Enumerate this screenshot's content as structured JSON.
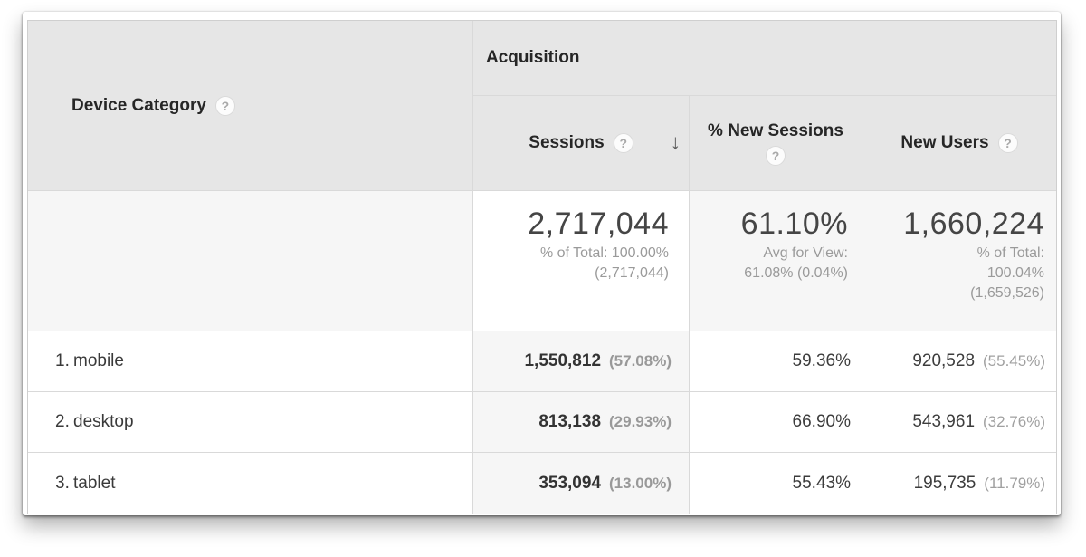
{
  "icons": {
    "help": "?",
    "sort_desc": "↓"
  },
  "colors": {
    "header_bg": "#e6e6e6",
    "highlight_bg": "#f6f6f6",
    "border": "#d9d9d9",
    "header_text": "#262626",
    "value_text": "#454545",
    "sub_text": "#9a9a9a"
  },
  "table": {
    "dimension_header": "Device Category",
    "group_header": "Acquisition",
    "columns": {
      "sessions": "Sessions",
      "new_sessions": "% New Sessions",
      "new_users": "New Users"
    },
    "sorted_column": "Sessions",
    "sort_direction": "descending",
    "summary": {
      "sessions": {
        "value": "2,717,044",
        "line1": "% of Total: 100.00%",
        "line2": "(2,717,044)"
      },
      "new_sessions": {
        "value": "61.10%",
        "line1": "Avg for View:",
        "line2": "61.08% (0.04%)"
      },
      "new_users": {
        "value": "1,660,224",
        "line1": "% of Total:",
        "line2": "100.04%",
        "line3": "(1,659,526)"
      }
    },
    "rows": [
      {
        "rank": "1.",
        "device": "mobile",
        "sessions": "1,550,812",
        "sessions_pct": "(57.08%)",
        "new_sessions": "59.36%",
        "new_users": "920,528",
        "new_users_pct": "(55.45%)"
      },
      {
        "rank": "2.",
        "device": "desktop",
        "sessions": "813,138",
        "sessions_pct": "(29.93%)",
        "new_sessions": "66.90%",
        "new_users": "543,961",
        "new_users_pct": "(32.76%)"
      },
      {
        "rank": "3.",
        "device": "tablet",
        "sessions": "353,094",
        "sessions_pct": "(13.00%)",
        "new_sessions": "55.43%",
        "new_users": "195,735",
        "new_users_pct": "(11.79%)"
      }
    ]
  }
}
